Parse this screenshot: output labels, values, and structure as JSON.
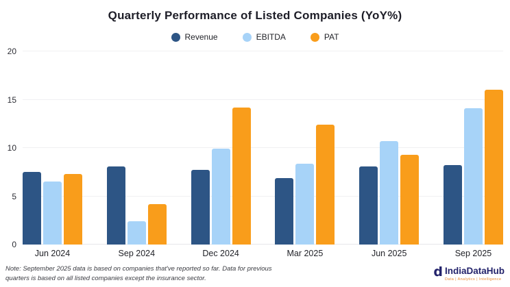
{
  "chart_data": {
    "type": "bar",
    "title": "Quarterly Performance of Listed Companies (YoY%)",
    "categories": [
      "Jun 2024",
      "Sep 2024",
      "Dec 2024",
      "Mar 2025",
      "Jun 2025",
      "Sep 2025"
    ],
    "series": [
      {
        "name": "Revenue",
        "color": "#2D5585",
        "values": [
          7.5,
          8.1,
          7.7,
          6.9,
          8.1,
          8.2
        ]
      },
      {
        "name": "EBITDA",
        "color": "#A7D3F8",
        "values": [
          6.5,
          2.4,
          9.9,
          8.4,
          10.7,
          14.1
        ]
      },
      {
        "name": "PAT",
        "color": "#F99D1B",
        "values": [
          7.3,
          4.2,
          14.2,
          12.4,
          9.3,
          16.0
        ]
      }
    ],
    "xlabel": "",
    "ylabel": "",
    "ylim": [
      0,
      20
    ],
    "yticks": [
      0,
      5,
      10,
      15,
      20
    ],
    "grid": true,
    "legend_position": "top"
  },
  "footer": {
    "note": "Note: September 2025 data is based on companies that've reported so far. Data for previous quarters is based on all listed companies except the insurance sector.",
    "logo": {
      "mark": "d",
      "name": "IndiaDataHub",
      "tagline": "Data | Analytics | Intelligence"
    }
  }
}
